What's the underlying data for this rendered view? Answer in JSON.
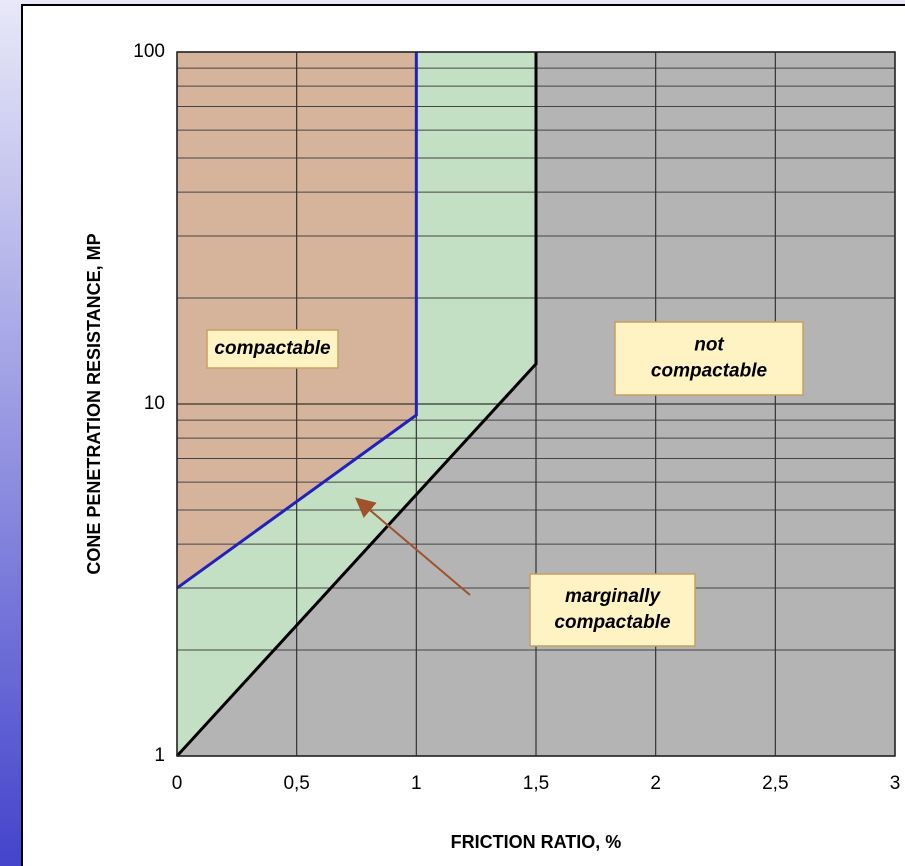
{
  "chart_data": {
    "type": "region",
    "x_label": "FRICTION RATIO, %",
    "y_label": "CONE PENETRATION RESISTANCE, MP",
    "xlim": [
      0,
      3
    ],
    "ylim": [
      1,
      100
    ],
    "yscale": "log",
    "grid": true,
    "xticks": [
      0,
      {
        "value": 0.5,
        "label": "0,5"
      },
      1,
      {
        "value": 1.5,
        "label": "1,5"
      },
      2,
      {
        "value": 2.5,
        "label": "2,5"
      },
      3
    ],
    "yticks": [
      1,
      10,
      100
    ],
    "minor_gridlines": [
      2,
      3,
      4,
      5,
      6,
      7,
      8,
      9,
      20,
      30,
      40,
      50,
      60,
      70,
      80,
      90
    ],
    "regions": [
      {
        "color": "#d6b49c",
        "x": [
          0,
          1,
          1,
          0
        ],
        "values": [
          3,
          9.3,
          100,
          100
        ]
      },
      {
        "color": "#c4e0c4",
        "x": [
          0,
          1.5,
          1.5,
          1,
          1,
          0
        ],
        "values": [
          1,
          13,
          100,
          100,
          9.3,
          3
        ]
      },
      {
        "color": "#b4b4b4",
        "x": [
          0,
          1.5,
          1.5,
          3,
          3
        ],
        "values": [
          1,
          13,
          100,
          100,
          1
        ]
      }
    ],
    "boundaries": [
      {
        "color": "#2222bb",
        "x": [
          0,
          1,
          1
        ],
        "values": [
          3,
          9.3,
          100
        ]
      },
      {
        "color": "#000000",
        "x": [
          0,
          1.5,
          1.5
        ],
        "values": [
          1,
          13,
          100
        ]
      }
    ],
    "annotations": [
      {
        "lines": [
          "compactable"
        ]
      },
      {
        "lines": [
          "not",
          "compactable"
        ]
      },
      {
        "lines": [
          "marginally",
          "compactable"
        ]
      }
    ]
  }
}
